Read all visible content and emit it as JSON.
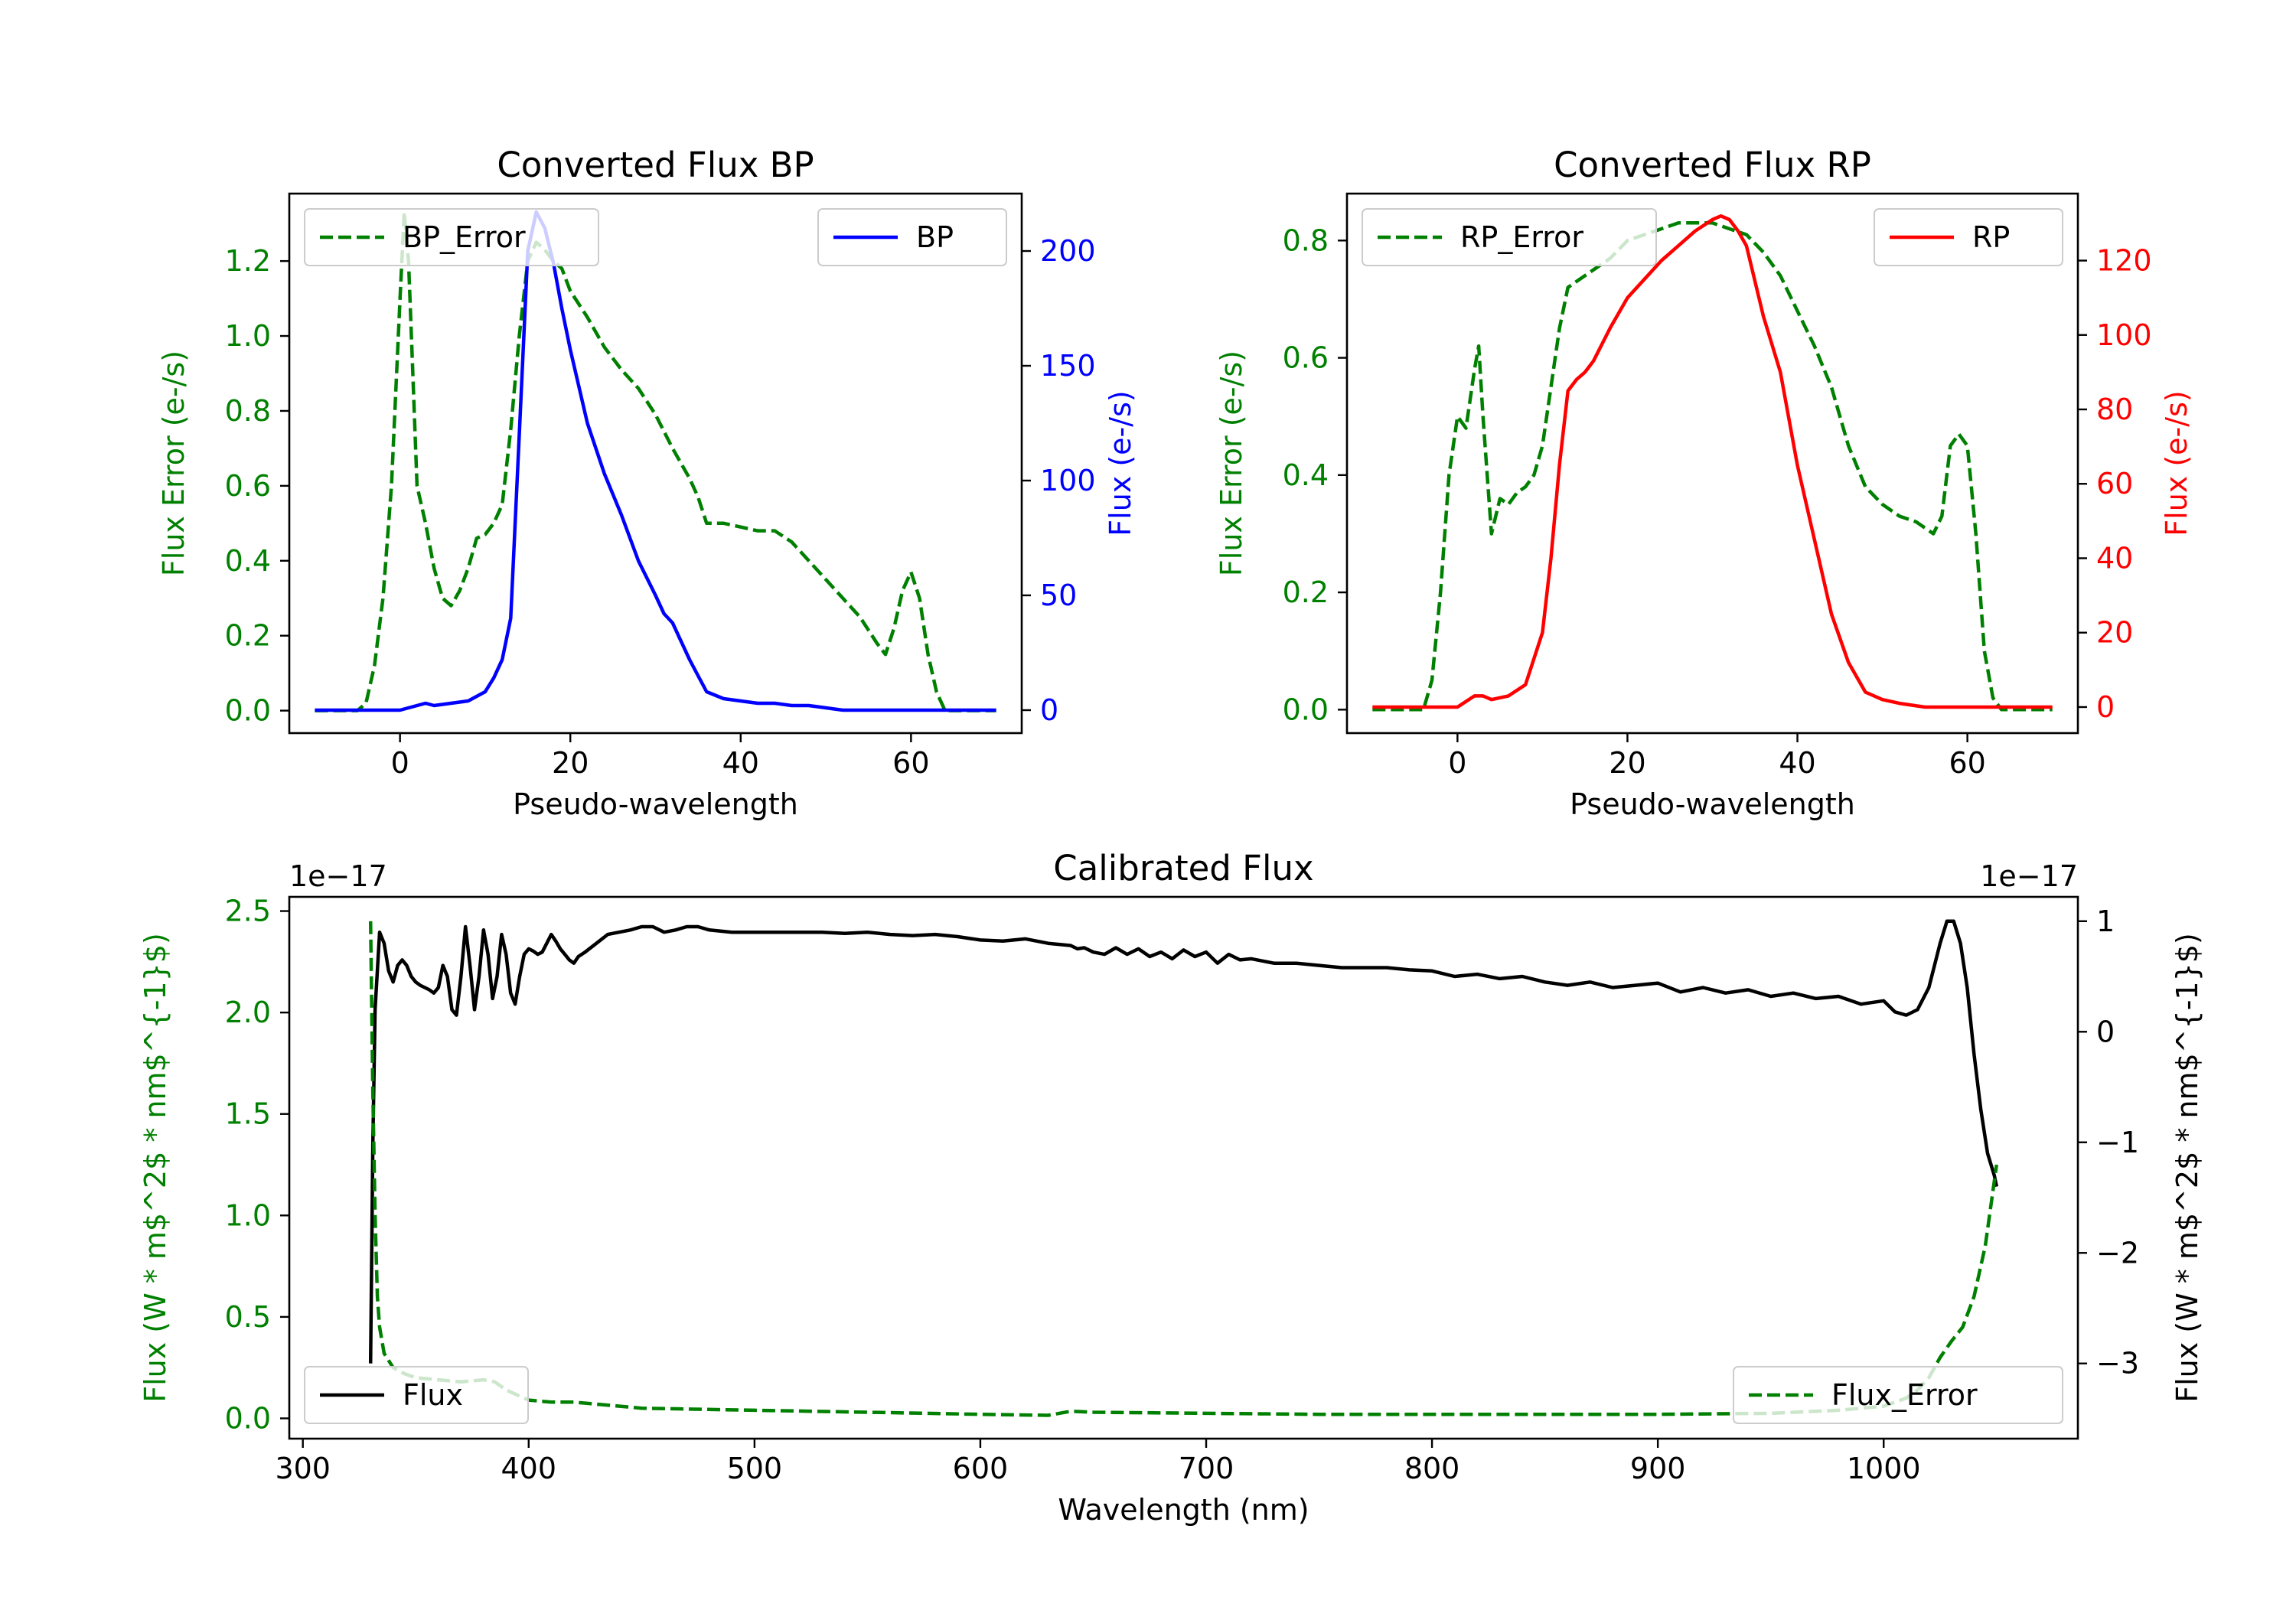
{
  "chart_data": [
    {
      "type": "line",
      "title": "Converted Flux BP",
      "xlabel": "Pseudo-wavelength",
      "ylabel_left": "Flux Error (e-/s)",
      "ylabel_right": "Flux (e-/s)",
      "xlim": [
        -13,
        73
      ],
      "ylim_left": [
        -0.06,
        1.38
      ],
      "ylim_right": [
        -10,
        225
      ],
      "xticks": [
        0,
        20,
        40,
        60
      ],
      "yticks_left": [
        0.0,
        0.2,
        0.4,
        0.6,
        0.8,
        1.0,
        1.2
      ],
      "yticks_right": [
        0,
        50,
        100,
        150,
        200
      ],
      "colors": {
        "error": "#008000",
        "flux": "#0000ff"
      },
      "legend_left": {
        "label": "BP_Error",
        "position": "top-left"
      },
      "legend_right": {
        "label": "BP",
        "position": "top-right"
      },
      "series": [
        {
          "name": "BP_Error",
          "axis": "left",
          "style": "dashed",
          "x": [
            -10,
            -5,
            -4,
            -3,
            -2,
            -1,
            0,
            0.5,
            1,
            1.5,
            2,
            3,
            4,
            5,
            6,
            7,
            8,
            9,
            10,
            11,
            12,
            13,
            14,
            15,
            16,
            17,
            18,
            19,
            20,
            22,
            24,
            26,
            28,
            30,
            32,
            34,
            35,
            36,
            38,
            40,
            42,
            44,
            46,
            48,
            50,
            52,
            54,
            56,
            57,
            58,
            59,
            60,
            61,
            62,
            63,
            64,
            70
          ],
          "y": [
            0.0,
            0.0,
            0.02,
            0.12,
            0.3,
            0.6,
            1.1,
            1.33,
            1.2,
            0.9,
            0.6,
            0.5,
            0.38,
            0.3,
            0.28,
            0.32,
            0.38,
            0.46,
            0.47,
            0.5,
            0.55,
            0.75,
            1.0,
            1.2,
            1.25,
            1.23,
            1.2,
            1.18,
            1.12,
            1.05,
            0.97,
            0.91,
            0.86,
            0.79,
            0.7,
            0.62,
            0.57,
            0.5,
            0.5,
            0.49,
            0.48,
            0.48,
            0.45,
            0.4,
            0.35,
            0.3,
            0.25,
            0.18,
            0.15,
            0.22,
            0.32,
            0.37,
            0.3,
            0.15,
            0.05,
            0.0,
            0.0
          ]
        },
        {
          "name": "BP",
          "axis": "right",
          "style": "solid",
          "x": [
            -10,
            0,
            2,
            3,
            4,
            6,
            8,
            10,
            11,
            12,
            13,
            14,
            15,
            16,
            17,
            18,
            19,
            20,
            22,
            24,
            26,
            28,
            30,
            31,
            32,
            33,
            34,
            35,
            36,
            38,
            40,
            42,
            44,
            46,
            48,
            50,
            52,
            55,
            60,
            65,
            70
          ],
          "y": [
            0,
            0,
            2,
            3,
            2,
            3,
            4,
            8,
            14,
            22,
            40,
            120,
            200,
            217,
            210,
            195,
            175,
            157,
            125,
            103,
            85,
            65,
            50,
            42,
            38,
            30,
            22,
            15,
            8,
            5,
            4,
            3,
            3,
            2,
            2,
            1,
            0,
            0,
            0,
            0,
            0
          ]
        }
      ]
    },
    {
      "type": "line",
      "title": "Converted Flux RP",
      "xlabel": "Pseudo-wavelength",
      "ylabel_left": "Flux Error (e-/s)",
      "ylabel_right": "Flux (e-/s)",
      "xlim": [
        -13,
        73
      ],
      "ylim_left": [
        -0.04,
        0.88
      ],
      "ylim_right": [
        -7,
        138
      ],
      "xticks": [
        0,
        20,
        40,
        60
      ],
      "yticks_left": [
        0.0,
        0.2,
        0.4,
        0.6,
        0.8
      ],
      "yticks_right": [
        0,
        20,
        40,
        60,
        80,
        100,
        120
      ],
      "colors": {
        "error": "#008000",
        "flux": "#ff0000"
      },
      "legend_left": {
        "label": "RP_Error",
        "position": "top-left"
      },
      "legend_right": {
        "label": "RP",
        "position": "top-right"
      },
      "series": [
        {
          "name": "RP_Error",
          "axis": "left",
          "style": "dashed",
          "x": [
            -10,
            -4,
            -3,
            -2,
            -1,
            0,
            1,
            2,
            2.5,
            3,
            3.5,
            4,
            5,
            6,
            7,
            8,
            9,
            10,
            11,
            12,
            13,
            14,
            16,
            18,
            20,
            22,
            24,
            26,
            28,
            30,
            32,
            34,
            36,
            38,
            40,
            42,
            44,
            46,
            48,
            50,
            52,
            54,
            56,
            57,
            58,
            59,
            60,
            61,
            62,
            63,
            64,
            70
          ],
          "y": [
            0.0,
            0.0,
            0.05,
            0.2,
            0.4,
            0.5,
            0.48,
            0.58,
            0.62,
            0.5,
            0.4,
            0.3,
            0.36,
            0.35,
            0.37,
            0.38,
            0.4,
            0.45,
            0.55,
            0.65,
            0.72,
            0.73,
            0.75,
            0.77,
            0.8,
            0.81,
            0.82,
            0.83,
            0.83,
            0.83,
            0.82,
            0.81,
            0.78,
            0.74,
            0.68,
            0.62,
            0.55,
            0.45,
            0.38,
            0.35,
            0.33,
            0.32,
            0.3,
            0.33,
            0.45,
            0.47,
            0.45,
            0.3,
            0.1,
            0.02,
            0.0,
            0.0
          ]
        },
        {
          "name": "RP",
          "axis": "right",
          "style": "solid",
          "x": [
            -10,
            0,
            2,
            3,
            4,
            6,
            8,
            10,
            11,
            12,
            13,
            14,
            15,
            16,
            18,
            20,
            22,
            24,
            26,
            28,
            30,
            31,
            32,
            33,
            34,
            36,
            38,
            40,
            42,
            44,
            46,
            48,
            50,
            52,
            55,
            60,
            65,
            70
          ],
          "y": [
            0,
            0,
            3,
            3,
            2,
            3,
            6,
            20,
            40,
            65,
            85,
            88,
            90,
            93,
            102,
            110,
            115,
            120,
            124,
            128,
            131,
            132,
            131,
            128,
            124,
            105,
            90,
            65,
            45,
            25,
            12,
            4,
            2,
            1,
            0,
            0,
            0,
            0
          ]
        }
      ]
    },
    {
      "type": "line",
      "title": "Calibrated Flux",
      "xlabel": "Wavelength (nm)",
      "ylabel_left": "Flux (W * m$^2$ * nm$^{-1}$)",
      "ylabel_right": "Flux (W * m$^2$ * nm$^{-1}$)",
      "left_offset_label": "1e−17",
      "right_offset_label": "1e−17",
      "xlim": [
        294,
        1086
      ],
      "ylim_left": [
        -0.1,
        2.57
      ],
      "ylim_right": [
        -3.68,
        1.22
      ],
      "xticks": [
        300,
        400,
        500,
        600,
        700,
        800,
        900,
        1000
      ],
      "yticks_left": [
        0.0,
        0.5,
        1.0,
        1.5,
        2.0,
        2.5
      ],
      "yticks_right": [
        -3,
        -2,
        -1,
        0,
        1
      ],
      "colors": {
        "error": "#008000",
        "flux": "#000000"
      },
      "legend_left": {
        "label": "Flux",
        "position": "bottom-left"
      },
      "legend_right": {
        "label": "Flux_Error",
        "position": "bottom-right"
      },
      "series": [
        {
          "name": "Flux",
          "axis": "right",
          "style": "solid",
          "x": [
            330,
            331,
            332,
            334,
            336,
            338,
            340,
            342,
            344,
            346,
            348,
            350,
            352,
            354,
            356,
            358,
            360,
            362,
            364,
            366,
            368,
            370,
            372,
            374,
            376,
            378,
            380,
            382,
            384,
            386,
            388,
            390,
            392,
            394,
            396,
            398,
            400,
            402,
            404,
            406,
            408,
            410,
            412,
            414,
            416,
            418,
            420,
            422,
            425,
            430,
            435,
            440,
            445,
            450,
            455,
            460,
            465,
            470,
            475,
            480,
            490,
            500,
            510,
            520,
            530,
            540,
            550,
            560,
            570,
            580,
            590,
            600,
            610,
            620,
            630,
            640,
            643,
            646,
            650,
            655,
            660,
            665,
            670,
            675,
            680,
            685,
            690,
            695,
            700,
            705,
            710,
            715,
            720,
            725,
            730,
            740,
            750,
            760,
            770,
            780,
            790,
            800,
            810,
            820,
            830,
            840,
            850,
            860,
            870,
            880,
            890,
            900,
            910,
            920,
            930,
            940,
            950,
            960,
            970,
            980,
            990,
            1000,
            1005,
            1010,
            1015,
            1020,
            1025,
            1028,
            1031,
            1034,
            1037,
            1040,
            1043,
            1046,
            1049,
            1050
          ],
          "y": [
            -3.0,
            -1.0,
            0.2,
            0.9,
            0.8,
            0.55,
            0.45,
            0.6,
            0.65,
            0.6,
            0.5,
            0.45,
            0.42,
            0.4,
            0.38,
            0.35,
            0.4,
            0.6,
            0.5,
            0.2,
            0.15,
            0.5,
            0.95,
            0.6,
            0.2,
            0.5,
            0.92,
            0.7,
            0.3,
            0.5,
            0.88,
            0.7,
            0.35,
            0.25,
            0.5,
            0.7,
            0.75,
            0.73,
            0.7,
            0.72,
            0.8,
            0.88,
            0.82,
            0.75,
            0.7,
            0.65,
            0.62,
            0.68,
            0.72,
            0.8,
            0.88,
            0.9,
            0.92,
            0.95,
            0.95,
            0.9,
            0.92,
            0.95,
            0.95,
            0.92,
            0.9,
            0.9,
            0.9,
            0.9,
            0.9,
            0.89,
            0.9,
            0.88,
            0.87,
            0.88,
            0.86,
            0.83,
            0.82,
            0.84,
            0.8,
            0.78,
            0.75,
            0.76,
            0.72,
            0.7,
            0.76,
            0.7,
            0.75,
            0.68,
            0.72,
            0.66,
            0.74,
            0.68,
            0.72,
            0.62,
            0.7,
            0.65,
            0.66,
            0.64,
            0.62,
            0.62,
            0.6,
            0.58,
            0.58,
            0.58,
            0.56,
            0.55,
            0.5,
            0.52,
            0.48,
            0.5,
            0.45,
            0.42,
            0.45,
            0.4,
            0.42,
            0.44,
            0.36,
            0.4,
            0.35,
            0.38,
            0.32,
            0.35,
            0.3,
            0.32,
            0.25,
            0.28,
            0.18,
            0.15,
            0.2,
            0.4,
            0.8,
            1.0,
            1.0,
            0.8,
            0.4,
            -0.2,
            -0.7,
            -1.1,
            -1.3,
            -1.4
          ]
        },
        {
          "name": "Flux_Error",
          "axis": "left",
          "style": "dashed",
          "x": [
            330,
            331,
            332,
            333,
            334,
            336,
            340,
            345,
            350,
            360,
            370,
            380,
            385,
            390,
            400,
            410,
            420,
            450,
            500,
            550,
            600,
            630,
            640,
            650,
            700,
            750,
            800,
            850,
            900,
            950,
            980,
            1000,
            1010,
            1015,
            1020,
            1025,
            1030,
            1035,
            1040,
            1045,
            1050
          ],
          "y": [
            2.45,
            1.6,
            1.0,
            0.6,
            0.45,
            0.32,
            0.25,
            0.22,
            0.2,
            0.19,
            0.18,
            0.19,
            0.18,
            0.14,
            0.09,
            0.08,
            0.08,
            0.05,
            0.04,
            0.03,
            0.02,
            0.015,
            0.035,
            0.03,
            0.025,
            0.02,
            0.02,
            0.02,
            0.02,
            0.025,
            0.04,
            0.06,
            0.1,
            0.14,
            0.2,
            0.3,
            0.38,
            0.45,
            0.6,
            0.85,
            1.25
          ]
        }
      ]
    }
  ]
}
